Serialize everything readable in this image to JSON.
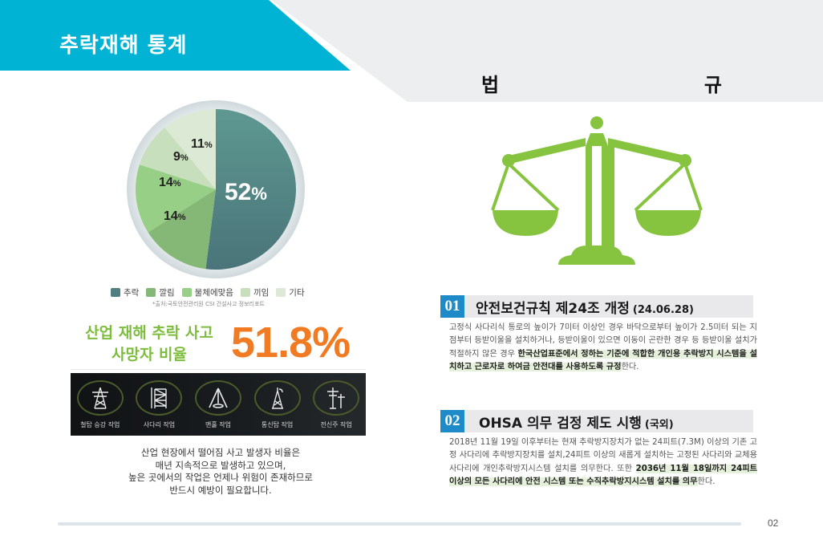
{
  "left": {
    "title": "추락재해 통계",
    "legend": [
      {
        "label": "추락",
        "color": "#4f7f80"
      },
      {
        "label": "깔림",
        "color": "#85b777"
      },
      {
        "label": "물체에맞음",
        "color": "#97cf87"
      },
      {
        "label": "끼임",
        "color": "#c7dfbc"
      },
      {
        "label": "기타",
        "color": "#dce9d4"
      }
    ],
    "source": "*출처:국토안전관리원 CSI 건설사고 정보리포트",
    "stat_label_line1": "산업 재해 추락 사고",
    "stat_label_line2": "사망자 비율",
    "stat_value": "51.8%",
    "work_types": [
      {
        "label": "철탑 승강 작업",
        "icon": "power-tower-icon"
      },
      {
        "label": "사다리 작업",
        "icon": "ladder-scaffold-icon"
      },
      {
        "label": "맨홀 작업",
        "icon": "manhole-tripod-icon"
      },
      {
        "label": "통신탑 작업",
        "icon": "telecom-tower-icon"
      },
      {
        "label": "전신주 작업",
        "icon": "utility-pole-icon"
      }
    ],
    "description": [
      "산업 현장에서 떨어짐 사고 발생자 비율은",
      "매년 지속적으로 발생하고 있으며,",
      "높은 곳에서의 작업은 언제나 위험이 존재하므로",
      "반드시 예방이 필요합니다."
    ]
  },
  "chart_data": {
    "type": "pie",
    "title": "",
    "categories": [
      "추락",
      "깔림",
      "물체에맞음",
      "끼임",
      "기타"
    ],
    "values": [
      52,
      14,
      14,
      9,
      11
    ],
    "labels": [
      "52%",
      "14%",
      "14%",
      "9%",
      "11%"
    ],
    "colors": [
      "#4f7f80",
      "#85b777",
      "#97cf87",
      "#c7dfbc",
      "#dce9d4"
    ],
    "legend_position": "bottom"
  },
  "right": {
    "title_char1": "법",
    "title_char2": "규",
    "sections": [
      {
        "num": "01",
        "title": "안전보건규칙 제24조 개정",
        "sub": "(24.06.28)",
        "body_plain": "고정식 사다리식 통로의 높이가 7미터 이상인 경우 바닥으로부터 높이가 2.5미터 되는 지점부터 등받이울을 설치하거나, 등받이울이 있으면 이동이 곤란한 경우 등 등받이울 설치가 적절하지 않은 경우 ",
        "body_highlight": "한국산업표준에서 정하는 기준에 적합한 개인용 추락방지 시스템을 설치하고 근로자로 하여금 안전대를 사용하도록 규정",
        "body_tail": "한다."
      },
      {
        "num": "02",
        "title": "OHSA 의무 검정 제도 시행",
        "sub": "(국외)",
        "body_plain": "2018년 11월 19일 이후부터는 현재 추락방지장치가 없는 24피트(7.3M) 이상의 기존 고정 사다리에 추락방지장치를 설치,24피트 이상의 새롭게 설치하는 고정된 사다리와 교체용 사다리에 개인추락방지시스템 설치를 의무한다. 또한 ",
        "body_highlight": "2036년 11월 18일까지 24피트 이상의 모든 사다리에 안전 시스템 또는 수직추락방지시스템 설치를 의무",
        "body_tail": "한다."
      }
    ]
  },
  "footer": {
    "page": "02"
  },
  "colors": {
    "banner": "#00b2d4",
    "gray_panel": "#eceef0",
    "accent_green": "#7dbd3e",
    "accent_orange": "#f07b22",
    "section_blue": "#1e8bc8"
  }
}
